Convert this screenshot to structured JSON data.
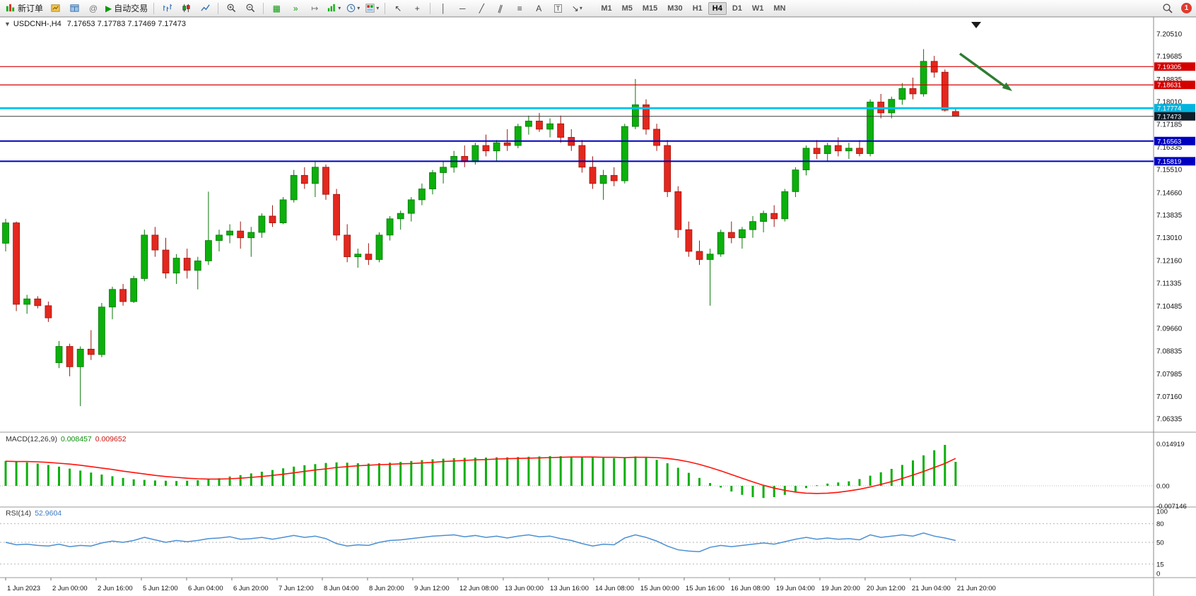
{
  "toolbar": {
    "new_order_label": "新订单",
    "auto_trading_label": "自动交易",
    "timeframes": [
      "M1",
      "M5",
      "M15",
      "M30",
      "H1",
      "H4",
      "D1",
      "W1",
      "MN"
    ],
    "active_timeframe": "H4",
    "notification_count": "1"
  },
  "icons": {
    "collapse": "▼",
    "play": "▶",
    "community": "@",
    "tile": "▦",
    "auto_scroll": "»",
    "chart_shift": "↦",
    "cursor": "↖",
    "crosshair": "+",
    "vline": "│",
    "hline": "─",
    "trend": "╱",
    "channel": "∥",
    "fibo": "≡",
    "text": "A",
    "text_label": "T",
    "arrow_tool": "↘",
    "dropdown": "▾"
  },
  "chart": {
    "symbol_period": "USDCNH-,H4",
    "ohlc": "7.17653 7.17783 7.17469 7.17473"
  },
  "colors": {
    "bull": "#0cb00c",
    "bull_stroke": "#077807",
    "bear": "#e3281e",
    "bear_stroke": "#9e150e",
    "macd_histogram": "#0cb00c",
    "macd_signal": "#ff120a",
    "rsi_line": "#4a8fd4",
    "annotation_arrow": "#2f7d32",
    "hline_red": "#d40000",
    "hline_blue": "#0000c0",
    "hline_cyan": "#00c4ef",
    "bid_tag": "#101c28"
  },
  "chart_data": {
    "type": "candlestick",
    "title": "USDCNH- H4",
    "price_axis_ticks": [
      "7.20510",
      "7.19685",
      "7.18835",
      "7.18010",
      "7.17185",
      "7.16335",
      "7.15510",
      "7.14660",
      "7.13835",
      "7.13010",
      "7.12160",
      "7.11335",
      "7.10485",
      "7.09660",
      "7.08835",
      "7.07985",
      "7.07160",
      "7.06335"
    ],
    "time_labels": [
      "1 Jun 2023",
      "2 Jun 00:00",
      "2 Jun 16:00",
      "5 Jun 12:00",
      "6 Jun 04:00",
      "6 Jun 20:00",
      "7 Jun 12:00",
      "8 Jun 04:00",
      "8 Jun 20:00",
      "9 Jun 12:00",
      "12 Jun 08:00",
      "13 Jun 00:00",
      "13 Jun 16:00",
      "14 Jun 08:00",
      "15 Jun 00:00",
      "15 Jun 16:00",
      "16 Jun 08:00",
      "19 Jun 04:00",
      "19 Jun 20:00",
      "20 Jun 12:00",
      "21 Jun 04:00",
      "21 Jun 20:00"
    ],
    "hlines": [
      {
        "price": 7.19305,
        "tag": "7.19305",
        "color": "#d40000",
        "width": 1.2,
        "tag_bg": "#d40000"
      },
      {
        "price": 7.18631,
        "tag": "7.18631",
        "color": "#d40000",
        "width": 1.2,
        "tag_bg": "#d40000"
      },
      {
        "price": 7.17774,
        "tag": "7.17774",
        "color": "#00c4ef",
        "width": 3,
        "tag_bg": "#00b4df"
      },
      {
        "price": 7.17473,
        "tag": "7.17473",
        "color": "#3a3a3a",
        "width": 1,
        "tag_bg": "#101c28"
      },
      {
        "price": 7.16563,
        "tag": "7.16563",
        "color": "#0000c0",
        "width": 2,
        "tag_bg": "#0000c0"
      },
      {
        "price": 7.15819,
        "tag": "7.15819",
        "color": "#0000c0",
        "width": 2,
        "tag_bg": "#0000c0"
      }
    ],
    "candles": [
      [
        7.128,
        7.137,
        7.125,
        7.1355
      ],
      [
        7.1355,
        7.136,
        7.103,
        7.1055
      ],
      [
        7.1055,
        7.109,
        7.102,
        7.1075
      ],
      [
        7.1075,
        7.1085,
        7.104,
        7.105
      ],
      [
        7.105,
        7.1065,
        7.099,
        7.1005
      ],
      [
        7.084,
        7.092,
        7.082,
        7.09
      ],
      [
        7.09,
        7.091,
        7.079,
        7.0825
      ],
      [
        7.0825,
        7.09,
        7.068,
        7.089
      ],
      [
        7.089,
        7.096,
        7.085,
        7.087
      ],
      [
        7.087,
        7.106,
        7.086,
        7.1045
      ],
      [
        7.1045,
        7.112,
        7.1,
        7.111
      ],
      [
        7.111,
        7.113,
        7.105,
        7.1065
      ],
      [
        7.1065,
        7.116,
        7.106,
        7.115
      ],
      [
        7.115,
        7.133,
        7.114,
        7.131
      ],
      [
        7.131,
        7.134,
        7.123,
        7.1255
      ],
      [
        7.1255,
        7.13,
        7.115,
        7.117
      ],
      [
        7.117,
        7.124,
        7.113,
        7.1225
      ],
      [
        7.1225,
        7.126,
        7.115,
        7.118
      ],
      [
        7.118,
        7.123,
        7.111,
        7.1215
      ],
      [
        7.1215,
        7.147,
        7.12,
        7.129
      ],
      [
        7.129,
        7.133,
        7.125,
        7.131
      ],
      [
        7.131,
        7.135,
        7.128,
        7.1325
      ],
      [
        7.1325,
        7.136,
        7.126,
        7.13
      ],
      [
        7.13,
        7.134,
        7.123,
        7.132
      ],
      [
        7.132,
        7.139,
        7.13,
        7.138
      ],
      [
        7.138,
        7.142,
        7.134,
        7.1355
      ],
      [
        7.1355,
        7.145,
        7.135,
        7.144
      ],
      [
        7.144,
        7.155,
        7.143,
        7.153
      ],
      [
        7.153,
        7.156,
        7.148,
        7.15
      ],
      [
        7.15,
        7.158,
        7.145,
        7.156
      ],
      [
        7.156,
        7.157,
        7.144,
        7.146
      ],
      [
        7.146,
        7.148,
        7.129,
        7.131
      ],
      [
        7.131,
        7.135,
        7.121,
        7.123
      ],
      [
        7.123,
        7.126,
        7.119,
        7.124
      ],
      [
        7.124,
        7.128,
        7.12,
        7.122
      ],
      [
        7.122,
        7.132,
        7.121,
        7.131
      ],
      [
        7.131,
        7.138,
        7.129,
        7.137
      ],
      [
        7.137,
        7.14,
        7.133,
        7.139
      ],
      [
        7.139,
        7.145,
        7.136,
        7.144
      ],
      [
        7.144,
        7.15,
        7.142,
        7.148
      ],
      [
        7.148,
        7.155,
        7.146,
        7.154
      ],
      [
        7.154,
        7.158,
        7.15,
        7.156
      ],
      [
        7.156,
        7.162,
        7.154,
        7.16
      ],
      [
        7.16,
        7.164,
        7.156,
        7.158
      ],
      [
        7.158,
        7.165,
        7.157,
        7.164
      ],
      [
        7.164,
        7.168,
        7.16,
        7.162
      ],
      [
        7.162,
        7.166,
        7.158,
        7.165
      ],
      [
        7.165,
        7.17,
        7.162,
        7.164
      ],
      [
        7.164,
        7.172,
        7.163,
        7.171
      ],
      [
        7.171,
        7.175,
        7.168,
        7.173
      ],
      [
        7.173,
        7.176,
        7.169,
        7.17
      ],
      [
        7.17,
        7.174,
        7.167,
        7.172
      ],
      [
        7.172,
        7.175,
        7.165,
        7.167
      ],
      [
        7.167,
        7.17,
        7.162,
        7.164
      ],
      [
        7.164,
        7.166,
        7.154,
        7.156
      ],
      [
        7.156,
        7.16,
        7.148,
        7.15
      ],
      [
        7.15,
        7.155,
        7.144,
        7.153
      ],
      [
        7.153,
        7.156,
        7.149,
        7.151
      ],
      [
        7.151,
        7.172,
        7.15,
        7.171
      ],
      [
        7.171,
        7.1885,
        7.17,
        7.179
      ],
      [
        7.179,
        7.181,
        7.168,
        7.17
      ],
      [
        7.17,
        7.172,
        7.162,
        7.164
      ],
      [
        7.164,
        7.166,
        7.145,
        7.147
      ],
      [
        7.147,
        7.149,
        7.13,
        7.133
      ],
      [
        7.133,
        7.136,
        7.123,
        7.125
      ],
      [
        7.125,
        7.129,
        7.12,
        7.122
      ],
      [
        7.122,
        7.126,
        7.105,
        7.124
      ],
      [
        7.124,
        7.133,
        7.123,
        7.132
      ],
      [
        7.132,
        7.136,
        7.128,
        7.13
      ],
      [
        7.13,
        7.134,
        7.126,
        7.133
      ],
      [
        7.133,
        7.138,
        7.13,
        7.136
      ],
      [
        7.136,
        7.14,
        7.132,
        7.139
      ],
      [
        7.139,
        7.142,
        7.134,
        7.137
      ],
      [
        7.137,
        7.148,
        7.136,
        7.147
      ],
      [
        7.147,
        7.156,
        7.145,
        7.155
      ],
      [
        7.155,
        7.164,
        7.153,
        7.163
      ],
      [
        7.163,
        7.166,
        7.159,
        7.161
      ],
      [
        7.161,
        7.165,
        7.158,
        7.164
      ],
      [
        7.164,
        7.167,
        7.16,
        7.162
      ],
      [
        7.162,
        7.165,
        7.159,
        7.163
      ],
      [
        7.163,
        7.166,
        7.16,
        7.161
      ],
      [
        7.161,
        7.181,
        7.16,
        7.18
      ],
      [
        7.18,
        7.183,
        7.174,
        7.176
      ],
      [
        7.176,
        7.182,
        7.174,
        7.181
      ],
      [
        7.181,
        7.187,
        7.179,
        7.185
      ],
      [
        7.185,
        7.189,
        7.181,
        7.183
      ],
      [
        7.183,
        7.1995,
        7.182,
        7.195
      ],
      [
        7.195,
        7.197,
        7.189,
        7.191
      ],
      [
        7.191,
        7.192,
        7.1765,
        7.177
      ],
      [
        7.17653,
        7.17783,
        7.17469,
        7.17473
      ]
    ],
    "macd": {
      "name": "MACD(12,26,9)",
      "value_main": "0.008457",
      "value_signal": "0.009652",
      "axis": [
        {
          "label": "0.014919",
          "value": 0.014919
        },
        {
          "label": "0.00",
          "value": 0
        },
        {
          "label": "-0.007146",
          "value": -0.007146
        }
      ],
      "histogram": [
        0.0088,
        0.0086,
        0.0083,
        0.0079,
        0.0074,
        0.0068,
        0.0061,
        0.0054,
        0.0047,
        0.004,
        0.0034,
        0.0028,
        0.0023,
        0.0021,
        0.0019,
        0.0018,
        0.0017,
        0.0018,
        0.002,
        0.0023,
        0.0027,
        0.0033,
        0.0038,
        0.0044,
        0.005,
        0.0056,
        0.0062,
        0.0068,
        0.0073,
        0.0077,
        0.0081,
        0.0083,
        0.0082,
        0.008,
        0.0079,
        0.008,
        0.0082,
        0.0085,
        0.0088,
        0.0091,
        0.0094,
        0.0096,
        0.0098,
        0.0099,
        0.01,
        0.01,
        0.0101,
        0.0101,
        0.0102,
        0.0103,
        0.0104,
        0.0105,
        0.0105,
        0.0104,
        0.0102,
        0.01,
        0.0099,
        0.0098,
        0.01,
        0.0104,
        0.01,
        0.0092,
        0.008,
        0.0064,
        0.0046,
        0.0028,
        0.001,
        -0.0006,
        -0.002,
        -0.0032,
        -0.004,
        -0.0043,
        -0.004,
        -0.0032,
        -0.002,
        -0.0008,
        0.0002,
        0.0008,
        0.0012,
        0.0016,
        0.0024,
        0.0036,
        0.0048,
        0.006,
        0.0074,
        0.009,
        0.0108,
        0.0126,
        0.0145,
        0.0085
      ],
      "signal": [
        0.0087,
        0.0086,
        0.0086,
        0.0085,
        0.0083,
        0.008,
        0.0077,
        0.0073,
        0.0068,
        0.0063,
        0.0058,
        0.0052,
        0.0047,
        0.0042,
        0.0037,
        0.0033,
        0.003,
        0.0027,
        0.0025,
        0.0024,
        0.0024,
        0.0025,
        0.0027,
        0.003,
        0.0033,
        0.0037,
        0.0041,
        0.0046,
        0.0051,
        0.0056,
        0.006,
        0.0065,
        0.0068,
        0.0071,
        0.0073,
        0.0075,
        0.0076,
        0.0078,
        0.0079,
        0.0081,
        0.0083,
        0.0086,
        0.0088,
        0.009,
        0.0092,
        0.0093,
        0.0095,
        0.0096,
        0.0097,
        0.0098,
        0.0099,
        0.01,
        0.0101,
        0.0102,
        0.0102,
        0.0102,
        0.0101,
        0.0101,
        0.01,
        0.0101,
        0.0101,
        0.01,
        0.0097,
        0.0092,
        0.0085,
        0.0076,
        0.0065,
        0.0053,
        0.004,
        0.0027,
        0.0014,
        0.0002,
        -0.0008,
        -0.0016,
        -0.0022,
        -0.0026,
        -0.0027,
        -0.0026,
        -0.0023,
        -0.0018,
        -0.0012,
        -0.0004,
        0.0005,
        0.0015,
        0.0026,
        0.0038,
        0.0051,
        0.0065,
        0.0079,
        0.0097
      ]
    },
    "rsi": {
      "name": "RSI(14)",
      "value": "52.9604",
      "axis": [
        {
          "label": "100",
          "value": 100
        },
        {
          "label": "80",
          "value": 80
        },
        {
          "label": "50",
          "value": 50
        },
        {
          "label": "15",
          "value": 15
        },
        {
          "label": "0",
          "value": 0
        }
      ],
      "levels": [
        80,
        50,
        15
      ],
      "values": [
        50,
        46,
        47,
        45,
        44,
        47,
        43,
        45,
        44,
        49,
        52,
        50,
        53,
        58,
        54,
        50,
        53,
        51,
        53,
        56,
        57,
        59,
        55,
        56,
        58,
        55,
        58,
        61,
        58,
        60,
        56,
        48,
        44,
        46,
        45,
        50,
        53,
        54,
        56,
        58,
        60,
        61,
        62,
        59,
        61,
        58,
        60,
        57,
        60,
        62,
        59,
        60,
        56,
        53,
        48,
        44,
        47,
        46,
        57,
        62,
        58,
        52,
        44,
        38,
        36,
        35,
        42,
        45,
        43,
        45,
        47,
        49,
        47,
        51,
        55,
        58,
        55,
        57,
        55,
        56,
        54,
        62,
        58,
        60,
        62,
        60,
        65,
        60,
        57,
        52.96
      ]
    }
  }
}
